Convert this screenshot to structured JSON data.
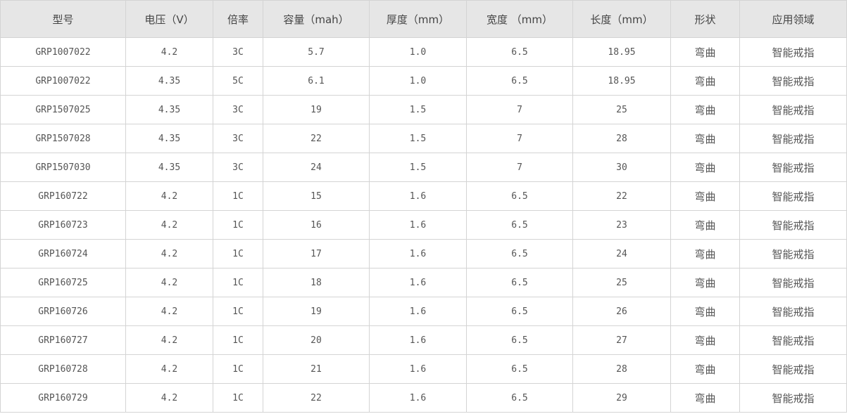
{
  "table": {
    "headers": [
      "型号",
      "电压（V）",
      "倍率",
      "容量（mah）",
      "厚度（mm）",
      "宽度 （mm）",
      "长度（mm）",
      "形状",
      "应用领域"
    ],
    "rows": [
      [
        "GRP1007022",
        "4.2",
        "3C",
        "5.7",
        "1.0",
        "6.5",
        "18.95",
        "弯曲",
        "智能戒指"
      ],
      [
        "GRP1007022",
        "4.35",
        "5C",
        "6.1",
        "1.0",
        "6.5",
        "18.95",
        "弯曲",
        "智能戒指"
      ],
      [
        "GRP1507025",
        "4.35",
        "3C",
        "19",
        "1.5",
        "7",
        "25",
        "弯曲",
        "智能戒指"
      ],
      [
        "GRP1507028",
        "4.35",
        "3C",
        "22",
        "1.5",
        "7",
        "28",
        "弯曲",
        "智能戒指"
      ],
      [
        "GRP1507030",
        "4.35",
        "3C",
        "24",
        "1.5",
        "7",
        "30",
        "弯曲",
        "智能戒指"
      ],
      [
        "GRP160722",
        "4.2",
        "1C",
        "15",
        "1.6",
        "6.5",
        "22",
        "弯曲",
        "智能戒指"
      ],
      [
        "GRP160723",
        "4.2",
        "1C",
        "16",
        "1.6",
        "6.5",
        "23",
        "弯曲",
        "智能戒指"
      ],
      [
        "GRP160724",
        "4.2",
        "1C",
        "17",
        "1.6",
        "6.5",
        "24",
        "弯曲",
        "智能戒指"
      ],
      [
        "GRP160725",
        "4.2",
        "1C",
        "18",
        "1.6",
        "6.5",
        "25",
        "弯曲",
        "智能戒指"
      ],
      [
        "GRP160726",
        "4.2",
        "1C",
        "19",
        "1.6",
        "6.5",
        "26",
        "弯曲",
        "智能戒指"
      ],
      [
        "GRP160727",
        "4.2",
        "1C",
        "20",
        "1.6",
        "6.5",
        "27",
        "弯曲",
        "智能戒指"
      ],
      [
        "GRP160728",
        "4.2",
        "1C",
        "21",
        "1.6",
        "6.5",
        "28",
        "弯曲",
        "智能戒指"
      ],
      [
        "GRP160729",
        "4.2",
        "1C",
        "22",
        "1.6",
        "6.5",
        "29",
        "弯曲",
        "智能戒指"
      ]
    ]
  },
  "colors": {
    "header_bg": "#e6e6e6",
    "border": "#d4d4d4",
    "text": "#555555"
  }
}
